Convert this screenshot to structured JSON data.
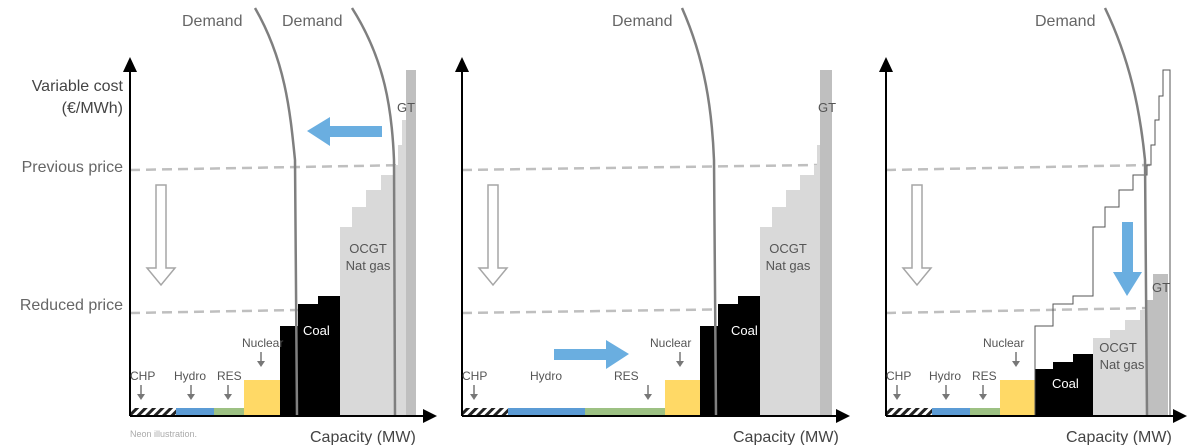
{
  "axes": {
    "y_title_line1": "Variable cost",
    "y_title_line2": "(€/MWh)",
    "x_title": "Capacity (MW)"
  },
  "price_levels": {
    "previous": "Previous price",
    "reduced": "Reduced price"
  },
  "note": "Neon illustration.",
  "colors": {
    "chp": "#222222",
    "hydro": "#5b9bd5",
    "res": "#9dc183",
    "nuclear": "#ffd966",
    "coal": "#000000",
    "ocgt": "#d9d9d9",
    "gt": "#bfbfbf",
    "arrow": "#6aaee0",
    "demand": "#7f7f7f",
    "dashed": "#bfbfbf"
  },
  "panels": [
    {
      "demand_labels": [
        "Demand",
        "Demand"
      ],
      "tech": {
        "chp": "CHP",
        "hydro": "Hydro",
        "res": "RES",
        "nuclear": "Nuclear",
        "coal": "Coal",
        "ocgt_1": "OCGT",
        "ocgt_2": "Nat gas",
        "gt": "GT"
      }
    },
    {
      "demand_labels": [
        "Demand"
      ],
      "tech": {
        "chp": "CHP",
        "hydro": "Hydro",
        "res": "RES",
        "nuclear": "Nuclear",
        "coal": "Coal",
        "ocgt_1": "OCGT",
        "ocgt_2": "Nat gas",
        "gt": "GT"
      }
    },
    {
      "demand_labels": [
        "Demand"
      ],
      "tech": {
        "chp": "CHP",
        "hydro": "Hydro",
        "res": "RES",
        "nuclear": "Nuclear",
        "coal": "Coal",
        "ocgt_1": "OCGT",
        "ocgt_2": "Nat gas",
        "gt": "GT"
      }
    }
  ]
}
